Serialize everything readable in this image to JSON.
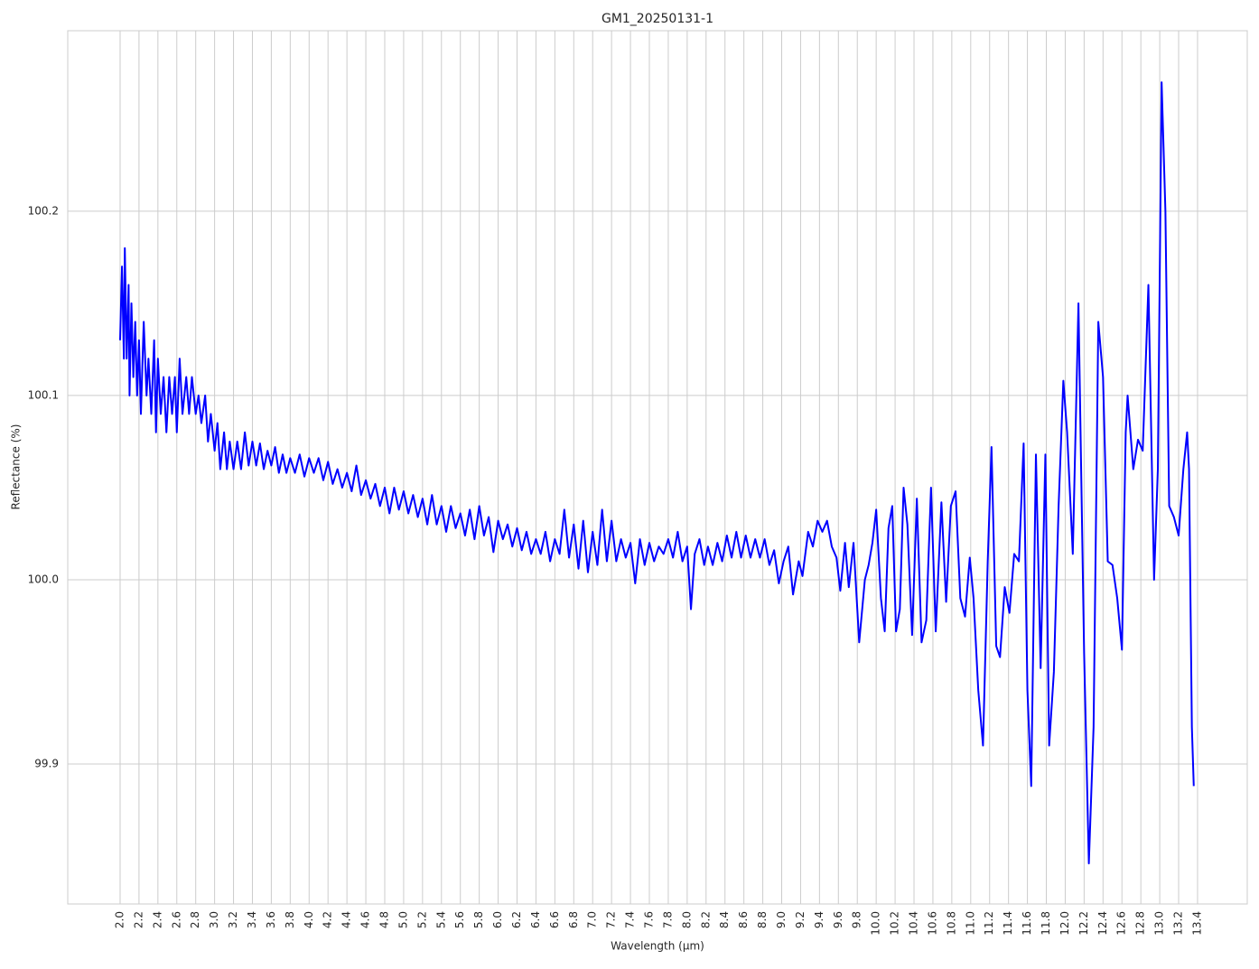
{
  "chart_data": {
    "type": "line",
    "title": "GM1_20250131-1",
    "x_label": "Wavelength (µm)",
    "y_label": "Reflectance (%)",
    "color": "#0000ff",
    "grid": true,
    "xlim": [
      1.446,
      13.926
    ],
    "ylim": [
      99.824,
      100.298
    ],
    "xticks": [
      {
        "value": 2,
        "label": "2.0"
      },
      2.2,
      2.4,
      2.6,
      2.8,
      {
        "value": 3,
        "label": "3.0"
      },
      3.2,
      3.4,
      3.6,
      3.8,
      {
        "value": 4,
        "label": "4.0"
      },
      4.2,
      4.4,
      4.6,
      4.8,
      {
        "value": 5,
        "label": "5.0"
      },
      5.2,
      5.4,
      5.6,
      5.8,
      {
        "value": 6,
        "label": "6.0"
      },
      6.2,
      6.4,
      6.6,
      6.8,
      {
        "value": 7,
        "label": "7.0"
      },
      7.2,
      7.4,
      7.6,
      7.8,
      {
        "value": 8,
        "label": "8.0"
      },
      8.2,
      8.4,
      8.6,
      8.8,
      {
        "value": 9,
        "label": "9.0"
      },
      9.2,
      9.4,
      9.6,
      9.8,
      {
        "value": 10,
        "label": "10.0"
      },
      10.2,
      10.4,
      10.6,
      10.8,
      {
        "value": 11,
        "label": "11.0"
      },
      11.2,
      11.4,
      11.6,
      11.8,
      {
        "value": 12,
        "label": "12.0"
      },
      12.2,
      12.4,
      12.6,
      12.8,
      {
        "value": 13,
        "label": "13.0"
      },
      13.2,
      13.4
    ],
    "yticks": [
      99.9,
      {
        "value": 100,
        "label": "100.0"
      },
      100.1,
      100.2
    ],
    "x": [
      2.0,
      2.02,
      2.04,
      2.05,
      2.07,
      2.09,
      2.1,
      2.12,
      2.14,
      2.16,
      2.18,
      2.2,
      2.22,
      2.25,
      2.28,
      2.3,
      2.33,
      2.36,
      2.38,
      2.4,
      2.43,
      2.46,
      2.49,
      2.52,
      2.55,
      2.58,
      2.6,
      2.63,
      2.66,
      2.7,
      2.73,
      2.76,
      2.8,
      2.83,
      2.86,
      2.9,
      2.93,
      2.96,
      3.0,
      3.03,
      3.06,
      3.1,
      3.13,
      3.16,
      3.2,
      3.24,
      3.28,
      3.32,
      3.36,
      3.4,
      3.44,
      3.48,
      3.52,
      3.56,
      3.6,
      3.64,
      3.68,
      3.72,
      3.76,
      3.8,
      3.85,
      3.9,
      3.95,
      4.0,
      4.05,
      4.1,
      4.15,
      4.2,
      4.25,
      4.3,
      4.35,
      4.4,
      4.45,
      4.5,
      4.55,
      4.6,
      4.65,
      4.7,
      4.75,
      4.8,
      4.85,
      4.9,
      4.95,
      5.0,
      5.05,
      5.1,
      5.15,
      5.2,
      5.25,
      5.3,
      5.35,
      5.4,
      5.45,
      5.5,
      5.55,
      5.6,
      5.65,
      5.7,
      5.75,
      5.8,
      5.85,
      5.9,
      5.95,
      6.0,
      6.05,
      6.1,
      6.15,
      6.2,
      6.25,
      6.3,
      6.35,
      6.4,
      6.45,
      6.5,
      6.55,
      6.6,
      6.65,
      6.7,
      6.75,
      6.8,
      6.85,
      6.9,
      6.95,
      7.0,
      7.05,
      7.1,
      7.15,
      7.2,
      7.25,
      7.3,
      7.35,
      7.4,
      7.45,
      7.5,
      7.55,
      7.6,
      7.65,
      7.7,
      7.75,
      7.8,
      7.85,
      7.9,
      7.95,
      8.0,
      8.04,
      8.08,
      8.13,
      8.18,
      8.22,
      8.27,
      8.32,
      8.37,
      8.42,
      8.47,
      8.52,
      8.57,
      8.62,
      8.67,
      8.72,
      8.77,
      8.82,
      8.87,
      8.92,
      8.97,
      9.02,
      9.07,
      9.12,
      9.18,
      9.22,
      9.28,
      9.33,
      9.38,
      9.43,
      9.48,
      9.53,
      9.58,
      9.62,
      9.67,
      9.71,
      9.76,
      9.82,
      9.88,
      9.92,
      9.96,
      10.0,
      10.05,
      10.09,
      10.13,
      10.17,
      10.21,
      10.25,
      10.29,
      10.33,
      10.38,
      10.43,
      10.48,
      10.53,
      10.58,
      10.63,
      10.69,
      10.74,
      10.79,
      10.84,
      10.89,
      10.94,
      10.99,
      11.03,
      11.08,
      11.13,
      11.18,
      11.22,
      11.27,
      11.31,
      11.36,
      11.41,
      11.46,
      11.51,
      11.56,
      11.6,
      11.64,
      11.69,
      11.74,
      11.79,
      11.83,
      11.88,
      11.93,
      11.98,
      12.02,
      12.08,
      12.14,
      12.2,
      12.25,
      12.3,
      12.35,
      12.4,
      12.45,
      12.5,
      12.55,
      12.6,
      12.64,
      12.66,
      12.72,
      12.77,
      12.82,
      12.88,
      12.94,
      12.98,
      13.02,
      13.06,
      13.1,
      13.15,
      13.2,
      13.25,
      13.29,
      13.31,
      13.34,
      13.36
    ],
    "values": [
      100.13,
      100.17,
      100.12,
      100.18,
      100.12,
      100.16,
      100.1,
      100.15,
      100.11,
      100.14,
      100.1,
      100.13,
      100.09,
      100.14,
      100.1,
      100.12,
      100.09,
      100.13,
      100.08,
      100.12,
      100.09,
      100.11,
      100.08,
      100.11,
      100.09,
      100.11,
      100.08,
      100.12,
      100.09,
      100.11,
      100.09,
      100.11,
      100.09,
      100.1,
      100.085,
      100.1,
      100.075,
      100.09,
      100.07,
      100.085,
      100.06,
      100.08,
      100.06,
      100.075,
      100.06,
      100.075,
      100.06,
      100.08,
      100.062,
      100.075,
      100.062,
      100.074,
      100.06,
      100.07,
      100.062,
      100.072,
      100.058,
      100.068,
      100.058,
      100.066,
      100.058,
      100.068,
      100.056,
      100.066,
      100.058,
      100.066,
      100.054,
      100.064,
      100.052,
      100.06,
      100.05,
      100.058,
      100.048,
      100.062,
      100.046,
      100.054,
      100.044,
      100.052,
      100.04,
      100.05,
      100.036,
      100.05,
      100.038,
      100.048,
      100.036,
      100.046,
      100.034,
      100.044,
      100.03,
      100.046,
      100.03,
      100.04,
      100.026,
      100.04,
      100.028,
      100.036,
      100.024,
      100.038,
      100.022,
      100.04,
      100.024,
      100.034,
      100.015,
      100.032,
      100.022,
      100.03,
      100.018,
      100.028,
      100.016,
      100.026,
      100.014,
      100.022,
      100.014,
      100.026,
      100.01,
      100.022,
      100.014,
      100.038,
      100.012,
      100.03,
      100.006,
      100.032,
      100.004,
      100.026,
      100.008,
      100.038,
      100.01,
      100.032,
      100.01,
      100.022,
      100.012,
      100.02,
      99.998,
      100.022,
      100.008,
      100.02,
      100.01,
      100.018,
      100.014,
      100.022,
      100.012,
      100.026,
      100.01,
      100.018,
      99.984,
      100.014,
      100.022,
      100.008,
      100.018,
      100.008,
      100.02,
      100.01,
      100.024,
      100.012,
      100.026,
      100.012,
      100.024,
      100.012,
      100.022,
      100.012,
      100.022,
      100.008,
      100.016,
      99.998,
      100.01,
      100.018,
      99.992,
      100.01,
      100.002,
      100.026,
      100.018,
      100.032,
      100.026,
      100.032,
      100.018,
      100.012,
      99.994,
      100.02,
      99.996,
      100.02,
      99.966,
      100.0,
      100.008,
      100.02,
      100.038,
      99.99,
      99.972,
      100.028,
      100.04,
      99.972,
      99.984,
      100.05,
      100.03,
      99.97,
      100.044,
      99.966,
      99.978,
      100.05,
      99.972,
      100.042,
      99.988,
      100.04,
      100.048,
      99.99,
      99.98,
      100.012,
      99.99,
      99.94,
      99.91,
      100.01,
      100.072,
      99.964,
      99.958,
      99.996,
      99.982,
      100.014,
      100.01,
      100.074,
      99.94,
      99.888,
      100.068,
      99.952,
      100.068,
      99.91,
      99.95,
      100.04,
      100.108,
      100.08,
      100.014,
      100.15,
      99.96,
      99.846,
      99.92,
      100.14,
      100.11,
      100.01,
      100.008,
      99.99,
      99.962,
      100.08,
      100.1,
      100.06,
      100.076,
      100.07,
      100.16,
      100.0,
      100.06,
      100.27,
      100.2,
      100.04,
      100.034,
      100.024,
      100.06,
      100.08,
      100.06,
      99.92,
      99.888
    ]
  }
}
